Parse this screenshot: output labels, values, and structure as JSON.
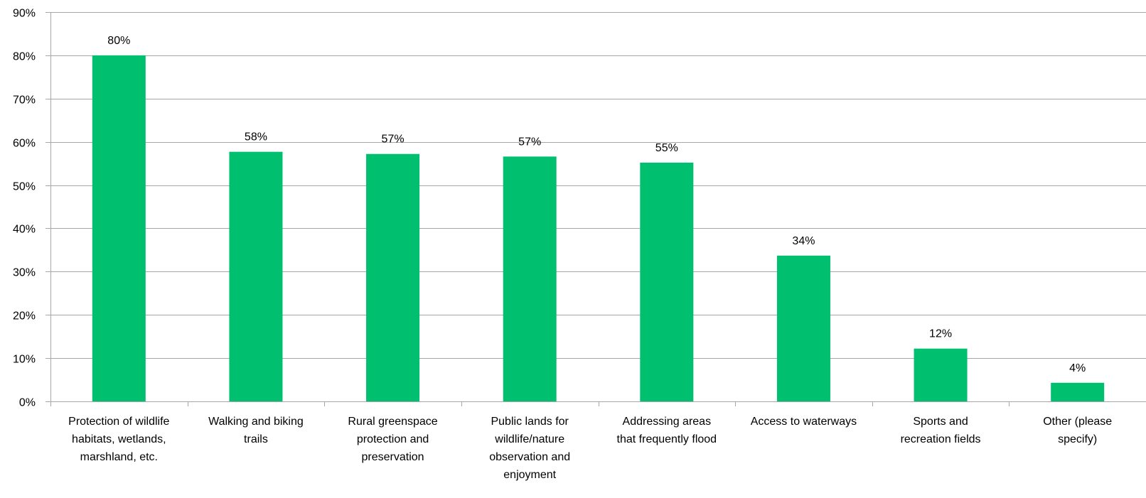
{
  "colors": {
    "bar": "#00bf6f",
    "grid": "#a6a6a6",
    "axis": "#a6a6a6",
    "text": "#000000"
  },
  "chart_data": {
    "type": "bar",
    "title": "",
    "xlabel": "",
    "ylabel": "",
    "ylim": [
      0,
      0.9
    ],
    "y_ticks": [
      0,
      0.1,
      0.2,
      0.3,
      0.4,
      0.5,
      0.6,
      0.7,
      0.8,
      0.9
    ],
    "y_tick_labels": [
      "0%",
      "10%",
      "20%",
      "30%",
      "40%",
      "50%",
      "60%",
      "70%",
      "80%",
      "90%"
    ],
    "grid": true,
    "legend": "none",
    "categories": [
      [
        "Protection of wildlife",
        "habitats, wetlands,",
        "marshland, etc."
      ],
      [
        "Walking and biking",
        "trails"
      ],
      [
        "Rural greenspace",
        "protection and",
        "preservation"
      ],
      [
        "Public lands for",
        "wildlife/nature",
        "observation and",
        "enjoyment"
      ],
      [
        "Addressing areas",
        "that frequently flood"
      ],
      [
        "Access to waterways"
      ],
      [
        "Sports and",
        "recreation fields"
      ],
      [
        "Other (please",
        "specify)"
      ]
    ],
    "values": [
      0.8,
      0.577,
      0.572,
      0.566,
      0.552,
      0.337,
      0.122,
      0.043
    ],
    "data_labels": [
      "80%",
      "58%",
      "57%",
      "57%",
      "55%",
      "34%",
      "12%",
      "4%"
    ]
  }
}
